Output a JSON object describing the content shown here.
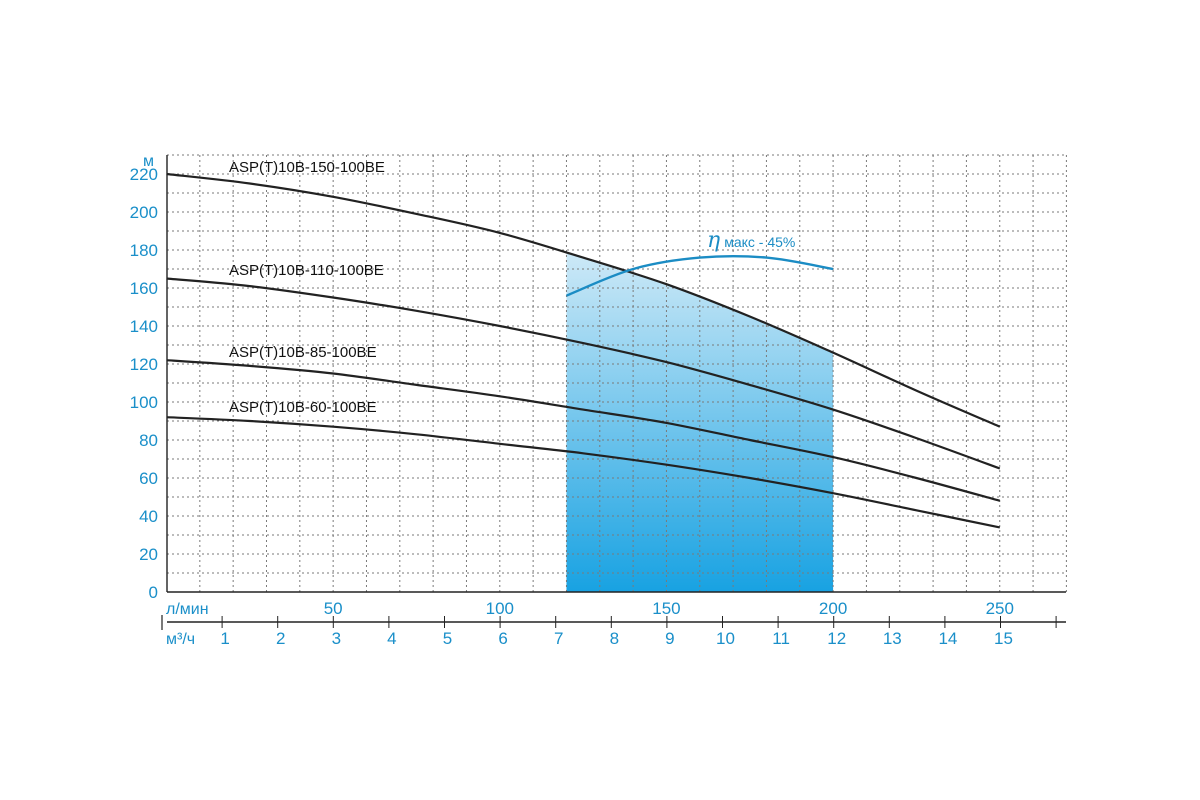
{
  "chart_data": {
    "type": "line",
    "y_unit": "м",
    "x_unit_lpm": "л/мин",
    "x_unit_m3h": "м³/ч",
    "ylim": [
      0,
      220
    ],
    "xlim_lpm": [
      0,
      270
    ],
    "grid": true,
    "y_ticks": [
      "0",
      "20",
      "40",
      "60",
      "80",
      "100",
      "120",
      "140",
      "160",
      "180",
      "200",
      "220"
    ],
    "x_ticks_lpm": [
      "50",
      "100",
      "150",
      "200",
      "250"
    ],
    "x_ticks_m3h": [
      "1",
      "2",
      "3",
      "4",
      "5",
      "6",
      "7",
      "8",
      "9",
      "10",
      "11",
      "12",
      "13",
      "14",
      "15"
    ],
    "series": [
      {
        "name": "ASP(T)10B-150-100BE",
        "x": [
          0,
          25,
          50,
          75,
          100,
          125,
          150,
          175,
          200,
          225,
          250
        ],
        "y": [
          220,
          215,
          208,
          199,
          189,
          176,
          162,
          145,
          126,
          106,
          87
        ]
      },
      {
        "name": "ASP(T)10B-110-100BE",
        "x": [
          0,
          25,
          50,
          75,
          100,
          125,
          150,
          175,
          200,
          225,
          250
        ],
        "y": [
          165,
          161,
          155,
          148,
          140,
          131,
          121,
          109,
          96,
          81,
          65
        ]
      },
      {
        "name": "ASP(T)10B-85-100BE",
        "x": [
          0,
          25,
          50,
          75,
          100,
          125,
          150,
          175,
          200,
          225,
          250
        ],
        "y": [
          122,
          119,
          115,
          109,
          103,
          96,
          89,
          80,
          71,
          60,
          48
        ]
      },
      {
        "name": "ASP(T)10B-60-100BE",
        "x": [
          0,
          25,
          50,
          75,
          100,
          125,
          150,
          175,
          200,
          225,
          250
        ],
        "y": [
          92,
          90,
          87,
          83,
          78,
          73,
          67,
          60,
          52,
          43,
          34
        ]
      }
    ],
    "efficiency_curve": {
      "label_symbol": "η",
      "label_text": "макс - 45%",
      "x": [
        120,
        140,
        160,
        180,
        200
      ],
      "y": [
        156,
        170,
        176,
        176,
        170
      ]
    },
    "operating_range_lpm": [
      120,
      200
    ],
    "colors": {
      "curve": "#222222",
      "grid": "#7a7a7a",
      "tick": "#1a8fc9",
      "efficiency": "#1b8cc4",
      "band_top": "#cde9f7",
      "band_bottom": "#18a2e2"
    }
  }
}
